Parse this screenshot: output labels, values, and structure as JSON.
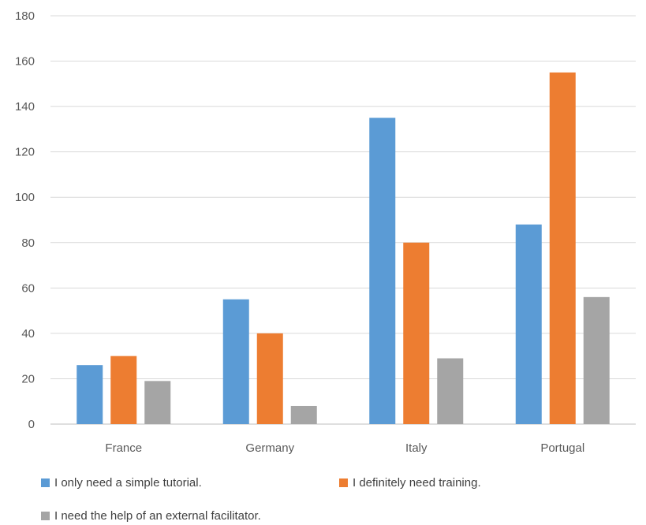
{
  "chart_data": {
    "type": "bar",
    "title": "",
    "xlabel": "",
    "ylabel": "",
    "categories": [
      "France",
      "Germany",
      "Italy",
      "Portugal"
    ],
    "series": [
      {
        "name": "I only need a simple tutorial.",
        "color": "#5b9bd5",
        "values": [
          26,
          55,
          135,
          88
        ]
      },
      {
        "name": "I definitely need training.",
        "color": "#ed7d31",
        "values": [
          30,
          40,
          80,
          155
        ]
      },
      {
        "name": "I need the help of an external facilitator.",
        "color": "#a5a5a5",
        "values": [
          19,
          8,
          29,
          56
        ]
      }
    ],
    "ylim": [
      0,
      180
    ],
    "yticks": [
      0,
      20,
      40,
      60,
      80,
      100,
      120,
      140,
      160,
      180
    ],
    "grid": true,
    "legend_position": "bottom-left"
  }
}
